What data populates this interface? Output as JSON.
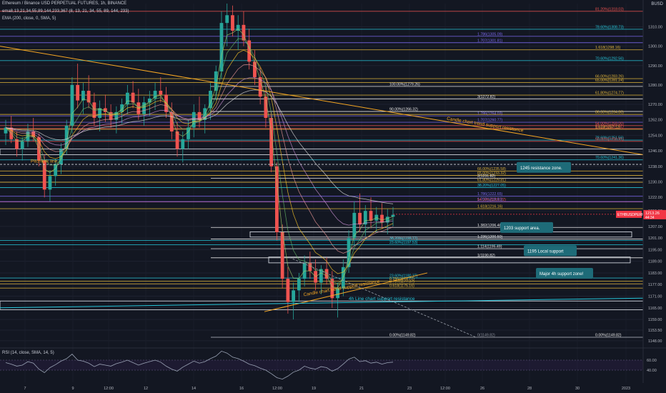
{
  "header": {
    "symbol_line": "Ethereum / Binance USD PERPETUAL FUTURES, 1h, BINANCE",
    "ema_ribbon": "ema8,13,21,34,55,89,144,233,367 (8, 13, 21, 34, 55, 89, 144, 233)",
    "ema200": "EMA (200, close, 0, SMA, 5)",
    "currency": "BUSD"
  },
  "rsi": {
    "label": "RSI (14, close, SMA, 14, 5)",
    "levels": [
      "60.00",
      "40.00"
    ]
  },
  "colors": {
    "background": "#131722",
    "up": "#26a69a",
    "down": "#ef5350",
    "fib_yellow": "#e0b43a",
    "fib_purple": "#7b68ee",
    "fib_teal": "#26c6da",
    "fib_red": "#ef5350",
    "trend_orange": "#f5a623",
    "callout": "#1e6b78",
    "price_tag": "#f23645"
  },
  "chart_data": {
    "type": "candlestick",
    "title": "",
    "y_axis": {
      "min": 1145,
      "max": 1322,
      "ticks": [
        "1310.00",
        "1300.00",
        "1290.00",
        "1280.00",
        "1270.00",
        "1262.00",
        "1254.00",
        "1246.00",
        "1238.00",
        "1230.00",
        "1222.00",
        "1215.00",
        "1207.00",
        "1201.00",
        "1195.00",
        "1189.00",
        "1183.00",
        "1177.00",
        "1171.00",
        "1165.00",
        "1159.00",
        "1153.50",
        "1148.00"
      ]
    },
    "x_axis": {
      "labels": [
        "7",
        "9",
        "12:00",
        "12",
        "14",
        "16",
        "12:00",
        "19",
        "21",
        "23",
        "12:00",
        "26",
        "28",
        "30",
        "2023"
      ]
    },
    "current_price": {
      "symbol": "ETHBUSDPERP",
      "value": "1213.26",
      "countdown": "44:34"
    },
    "fib_levels": [
      {
        "label": "81.20%(1318.03)",
        "price": 1318.03,
        "group": "red"
      },
      {
        "label": "78.60%(1308.73)",
        "price": 1308.73,
        "group": "teal"
      },
      {
        "label": "1.786(1305.09)",
        "price": 1305.09,
        "group": "purple"
      },
      {
        "label": "1.707(1301.81)",
        "price": 1301.81,
        "group": "purple"
      },
      {
        "label": "1.618(1298.16)",
        "price": 1298.16,
        "group": "yellow"
      },
      {
        "label": "70.60%(1292.56)",
        "price": 1292.56,
        "group": "teal"
      },
      {
        "label": "66.00%(1283.26)",
        "price": 1283.26,
        "group": "yellow"
      },
      {
        "label": "65.00%(1281.24)",
        "price": 1281.24,
        "group": "yellow"
      },
      {
        "label": "100.00%(1279.26)",
        "price": 1279.26,
        "group": "white"
      },
      {
        "label": "61.80%(1274.77)",
        "price": 1274.77,
        "group": "yellow"
      },
      {
        "label": "3(1272.82)",
        "price": 1272.82,
        "group": "white"
      },
      {
        "label": "90.00%(1266.32)",
        "price": 1266.32,
        "group": "white"
      },
      {
        "label": "1.786(1264.03)",
        "price": 1264.03,
        "group": "purple"
      },
      {
        "label": "86.00%(1264.80)",
        "price": 1264.8,
        "group": "yellow"
      },
      {
        "label": "1.707(1260.77)",
        "price": 1260.77,
        "group": "purple"
      },
      {
        "label": "54.00%(1259.00)",
        "price": 1259.0,
        "group": "red"
      },
      {
        "label": "83.20%(1257.51)",
        "price": 1257.51,
        "group": "red"
      },
      {
        "label": "1.618(1257.12)",
        "price": 1257.12,
        "group": "yellow"
      },
      {
        "label": "78.60%(1251.56)",
        "price": 1251.56,
        "group": "teal"
      },
      {
        "label": "50.00%(1250.91)",
        "price": 1250.91,
        "group": "red"
      },
      {
        "label": "70.60%(1241.36)",
        "price": 1241.36,
        "group": "teal"
      },
      {
        "label": "66.00%(1235.58)",
        "price": 1235.58,
        "group": "yellow"
      },
      {
        "label": "65.00%(1233.32)",
        "price": 1233.32,
        "group": "yellow"
      },
      {
        "label": "2(1231.82)",
        "price": 1231.82,
        "group": "white"
      },
      {
        "label": "61.80%(1229.81)",
        "price": 1229.81,
        "group": "yellow"
      },
      {
        "label": "38.20%(1227.05)",
        "price": 1227.05,
        "group": "teal"
      },
      {
        "label": "1.786(1222.65)",
        "price": 1222.65,
        "group": "purple"
      },
      {
        "label": "54.00%(1219.72)",
        "price": 1219.72,
        "group": "red"
      },
      {
        "label": "1.707(1219.81)",
        "price": 1219.81,
        "group": "purple"
      },
      {
        "label": "1.618(1216.16)",
        "price": 1216.16,
        "group": "yellow"
      },
      {
        "label": "1.382(1206.48)",
        "price": 1206.48,
        "group": "white"
      },
      {
        "label": "1.236(1200.50)",
        "price": 1200.5,
        "group": "white"
      },
      {
        "label": "38.20%(1199.77)",
        "price": 1199.77,
        "group": "teal"
      },
      {
        "label": "23.60%(1197.53)",
        "price": 1197.53,
        "group": "teal"
      },
      {
        "label": "1.114(1195.49)",
        "price": 1195.49,
        "group": "white"
      },
      {
        "label": "1(1190.82)",
        "price": 1190.82,
        "group": "white"
      },
      {
        "label": "23.60%(1180.37)",
        "price": 1180.37,
        "group": "teal"
      },
      {
        "label": "0.786(1178.77)",
        "price": 1178.77,
        "group": "yellow"
      },
      {
        "label": "0.707(1177.37)",
        "price": 1177.37,
        "group": "yellow"
      },
      {
        "label": "0.618(1175.16)",
        "price": 1175.16,
        "group": "yellow"
      },
      {
        "label": "0.00%(1149.82)",
        "price": 1149.82,
        "group": "white"
      },
      {
        "label": "0(1149.82)",
        "price": 1149.82,
        "group": "gray"
      }
    ],
    "annotations": [
      {
        "text": "Candle chart trend support resistance",
        "kind": "trend"
      },
      {
        "text": "Candle chart trend support resistance",
        "kind": "trend"
      },
      {
        "text": "4h Line chart support resistance",
        "kind": "trend"
      },
      {
        "text": "Pitchfork line",
        "kind": "label"
      }
    ],
    "callouts": [
      {
        "text": "1245 resistance zone.",
        "price": 1245
      },
      {
        "text": "1203 support area.",
        "price": 1203
      },
      {
        "text": "1195 Local support",
        "price": 1195
      },
      {
        "text": "Major 4h support zone!",
        "price": 1168
      }
    ],
    "ohlc": [
      [
        1255,
        1262,
        1249,
        1258
      ],
      [
        1258,
        1264,
        1250,
        1252
      ],
      [
        1252,
        1256,
        1243,
        1247
      ],
      [
        1247,
        1253,
        1241,
        1251
      ],
      [
        1251,
        1260,
        1248,
        1256
      ],
      [
        1256,
        1263,
        1251,
        1253
      ],
      [
        1253,
        1255,
        1238,
        1241
      ],
      [
        1241,
        1244,
        1222,
        1226
      ],
      [
        1226,
        1236,
        1220,
        1233
      ],
      [
        1233,
        1242,
        1228,
        1239
      ],
      [
        1239,
        1250,
        1234,
        1247
      ],
      [
        1247,
        1262,
        1244,
        1259
      ],
      [
        1259,
        1284,
        1255,
        1280
      ],
      [
        1280,
        1291,
        1268,
        1272
      ],
      [
        1272,
        1281,
        1265,
        1277
      ],
      [
        1277,
        1285,
        1268,
        1271
      ],
      [
        1271,
        1276,
        1259,
        1263
      ],
      [
        1263,
        1272,
        1256,
        1268
      ],
      [
        1268,
        1275,
        1261,
        1266
      ],
      [
        1266,
        1270,
        1258,
        1262
      ],
      [
        1262,
        1269,
        1255,
        1266
      ],
      [
        1266,
        1273,
        1260,
        1270
      ],
      [
        1270,
        1280,
        1265,
        1276
      ],
      [
        1276,
        1282,
        1268,
        1271
      ],
      [
        1271,
        1278,
        1262,
        1265
      ],
      [
        1265,
        1274,
        1259,
        1271
      ],
      [
        1271,
        1277,
        1264,
        1273
      ],
      [
        1273,
        1281,
        1267,
        1277
      ],
      [
        1277,
        1284,
        1271,
        1275
      ],
      [
        1275,
        1279,
        1263,
        1266
      ],
      [
        1266,
        1271,
        1252,
        1256
      ],
      [
        1256,
        1261,
        1243,
        1247
      ],
      [
        1247,
        1256,
        1240,
        1252
      ],
      [
        1252,
        1262,
        1247,
        1258
      ],
      [
        1258,
        1270,
        1253,
        1266
      ],
      [
        1266,
        1274,
        1258,
        1262
      ],
      [
        1262,
        1270,
        1255,
        1268
      ],
      [
        1268,
        1281,
        1262,
        1277
      ],
      [
        1277,
        1290,
        1272,
        1287
      ],
      [
        1287,
        1318,
        1283,
        1312
      ],
      [
        1312,
        1322,
        1300,
        1316
      ],
      [
        1316,
        1321,
        1305,
        1308
      ],
      [
        1308,
        1316,
        1298,
        1311
      ],
      [
        1311,
        1318,
        1300,
        1303
      ],
      [
        1303,
        1309,
        1288,
        1292
      ],
      [
        1292,
        1298,
        1280,
        1284
      ],
      [
        1284,
        1289,
        1270,
        1274
      ],
      [
        1274,
        1279,
        1258,
        1263
      ],
      [
        1263,
        1266,
        1235,
        1238
      ],
      [
        1238,
        1240,
        1200,
        1204
      ],
      [
        1204,
        1208,
        1175,
        1180
      ],
      [
        1180,
        1186,
        1162,
        1168
      ],
      [
        1168,
        1178,
        1159,
        1174
      ],
      [
        1174,
        1183,
        1168,
        1180
      ],
      [
        1180,
        1192,
        1176,
        1188
      ],
      [
        1188,
        1194,
        1180,
        1184
      ],
      [
        1184,
        1190,
        1174,
        1178
      ],
      [
        1178,
        1187,
        1172,
        1185
      ],
      [
        1185,
        1191,
        1177,
        1180
      ],
      [
        1180,
        1184,
        1165,
        1170
      ],
      [
        1170,
        1178,
        1160,
        1175
      ],
      [
        1175,
        1190,
        1171,
        1186
      ],
      [
        1186,
        1205,
        1183,
        1201
      ],
      [
        1201,
        1220,
        1197,
        1214
      ],
      [
        1214,
        1224,
        1204,
        1208
      ],
      [
        1208,
        1218,
        1202,
        1215
      ],
      [
        1215,
        1222,
        1206,
        1210
      ],
      [
        1210,
        1217,
        1204,
        1213
      ],
      [
        1213,
        1219,
        1206,
        1209
      ],
      [
        1209,
        1216,
        1203,
        1212
      ],
      [
        1212,
        1217,
        1207,
        1213
      ]
    ],
    "rsi_values": [
      55,
      52,
      48,
      50,
      57,
      54,
      42,
      35,
      45,
      51,
      58,
      63,
      72,
      60,
      58,
      54,
      47,
      52,
      50,
      48,
      53,
      56,
      60,
      55,
      50,
      54,
      57,
      60,
      56,
      48,
      42,
      38,
      46,
      52,
      58,
      54,
      57,
      63,
      68,
      78,
      74,
      66,
      63,
      58,
      52,
      49,
      44,
      40,
      33,
      25,
      22,
      28,
      36,
      40,
      48,
      44,
      42,
      47,
      45,
      38,
      43,
      52,
      62,
      66,
      57,
      59,
      54,
      56,
      52,
      55,
      56
    ]
  }
}
